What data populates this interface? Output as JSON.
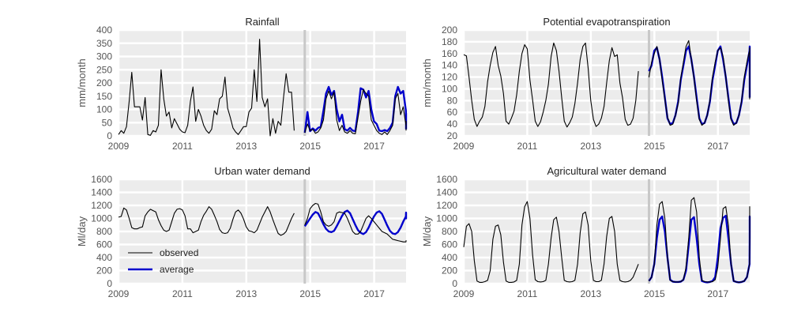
{
  "chart_data": [
    {
      "type": "line",
      "title": "Rainfall",
      "ylabel": "mm/month",
      "xlim": [
        2009,
        2018
      ],
      "ylim": [
        0,
        400
      ],
      "xticks": [
        2009,
        2011,
        2013,
        2015,
        2017
      ],
      "yticks": [
        0,
        50,
        100,
        150,
        200,
        250,
        300,
        350,
        400
      ],
      "divider_x": 2014.83,
      "grid": true,
      "series": [
        {
          "name": "observed",
          "color": "#000000",
          "x_start": 2009.0,
          "x_step": 0.0833,
          "values": [
            5,
            20,
            10,
            35,
            130,
            240,
            110,
            110,
            110,
            60,
            145,
            5,
            2,
            20,
            15,
            40,
            250,
            140,
            75,
            90,
            30,
            65,
            45,
            25,
            15,
            12,
            40,
            130,
            185,
            55,
            100,
            75,
            40,
            20,
            10,
            25,
            95,
            80,
            140,
            150,
            222,
            105,
            70,
            30,
            15,
            5,
            20,
            35,
            35,
            90,
            105,
            250,
            130,
            365,
            145,
            110,
            140,
            0,
            65,
            10,
            55,
            40,
            145,
            235,
            165,
            165,
            20
          ]
        },
        {
          "name": "average",
          "color": "#0000cc",
          "x_start": 2014.83,
          "x_step": 0.0833,
          "values": [
            12,
            90,
            18,
            28,
            20,
            30,
            35,
            95,
            160,
            185,
            155,
            170,
            100,
            55,
            80,
            25,
            20,
            30,
            20,
            18,
            90,
            180,
            175,
            145,
            170,
            100,
            55,
            45,
            20,
            18,
            22,
            18,
            30,
            50,
            150,
            185,
            160,
            170,
            95,
            55,
            45,
            85,
            25
          ]
        },
        {
          "name": "observed",
          "color": "#000000",
          "x_start": 2014.83,
          "x_step": 0.0833,
          "values": [
            12,
            45,
            20,
            25,
            10,
            15,
            30,
            60,
            140,
            170,
            140,
            165,
            60,
            20,
            40,
            15,
            10,
            20,
            10,
            8,
            70,
            130,
            175,
            160,
            150,
            60,
            40,
            20,
            10,
            5,
            15,
            5,
            20,
            40,
            140,
            160,
            80,
            110,
            40,
            45,
            35,
            55,
            20
          ]
        }
      ]
    },
    {
      "type": "line",
      "title": "Potential evapotranspiration",
      "ylabel": "mm/month",
      "xlim": [
        2009,
        2018
      ],
      "ylim": [
        20,
        200
      ],
      "xticks": [
        2009,
        2011,
        2013,
        2015,
        2017
      ],
      "yticks": [
        20,
        40,
        60,
        80,
        100,
        120,
        140,
        160,
        180,
        200
      ],
      "divider_x": 2014.83,
      "grid": true,
      "series": [
        {
          "name": "observed",
          "color": "#000000",
          "x_start": 2009.0,
          "x_step": 0.0833,
          "values": [
            158,
            156,
            120,
            80,
            48,
            36,
            45,
            52,
            70,
            112,
            140,
            162,
            172,
            140,
            122,
            92,
            45,
            40,
            50,
            62,
            90,
            130,
            160,
            175,
            168,
            115,
            82,
            45,
            36,
            44,
            60,
            80,
            108,
            155,
            178,
            165,
            130,
            85,
            45,
            35,
            42,
            52,
            75,
            110,
            150,
            172,
            178,
            135,
            80,
            48,
            36,
            40,
            50,
            70,
            110,
            148,
            170,
            155,
            158,
            110,
            85,
            48,
            38,
            40,
            50,
            80,
            130
          ]
        },
        {
          "name": "average",
          "color": "#0000cc",
          "x_start": 2014.83,
          "x_step": 0.0833,
          "values": [
            130,
            140,
            165,
            170,
            150,
            120,
            85,
            50,
            40,
            42,
            55,
            78,
            115,
            140,
            165,
            172,
            150,
            120,
            85,
            50,
            40,
            42,
            55,
            78,
            115,
            140,
            165,
            172,
            150,
            120,
            85,
            50,
            40,
            42,
            55,
            78,
            115,
            140,
            165,
            172,
            150,
            120,
            85
          ]
        },
        {
          "name": "observed",
          "color": "#000000",
          "x_start": 2014.83,
          "x_step": 0.0833,
          "values": [
            120,
            145,
            160,
            172,
            150,
            115,
            82,
            52,
            38,
            40,
            55,
            75,
            118,
            145,
            172,
            182,
            150,
            118,
            80,
            48,
            38,
            42,
            55,
            80,
            120,
            145,
            165,
            170,
            155,
            120,
            80,
            48,
            38,
            42,
            55,
            80,
            120,
            145,
            165,
            170,
            150,
            118,
            82
          ]
        }
      ]
    },
    {
      "type": "line",
      "title": "Urban water demand",
      "ylabel": "Ml/day",
      "xlim": [
        2009,
        2018
      ],
      "ylim": [
        0,
        1600
      ],
      "xticks": [
        2009,
        2011,
        2013,
        2015,
        2017
      ],
      "yticks": [
        0,
        200,
        400,
        600,
        800,
        1000,
        1200,
        1400,
        1600
      ],
      "divider_x": 2014.83,
      "grid": true,
      "legend": "bottom-left",
      "series": [
        {
          "name": "observed",
          "color": "#000000",
          "x_start": 2009.0,
          "x_step": 0.0833,
          "values": [
            1020,
            1030,
            1160,
            1130,
            1000,
            860,
            840,
            840,
            860,
            870,
            1040,
            1100,
            1140,
            1120,
            1100,
            980,
            890,
            820,
            800,
            820,
            950,
            1080,
            1140,
            1150,
            1130,
            1040,
            840,
            840,
            780,
            800,
            820,
            950,
            1050,
            1110,
            1180,
            1140,
            1050,
            950,
            830,
            780,
            770,
            780,
            850,
            990,
            1100,
            1130,
            1080,
            990,
            870,
            810,
            800,
            780,
            820,
            920,
            1020,
            1100,
            1180,
            1100,
            980,
            870,
            770,
            740,
            760,
            800,
            900,
            1000,
            1080
          ]
        },
        {
          "name": "average",
          "color": "#0000cc",
          "x_start": 2014.83,
          "x_step": 0.0833,
          "values": [
            880,
            940,
            1000,
            1060,
            1100,
            1080,
            1000,
            910,
            840,
            800,
            790,
            810,
            880,
            960,
            1040,
            1100,
            1120,
            1080,
            990,
            900,
            820,
            780,
            760,
            790,
            860,
            950,
            1030,
            1090,
            1110,
            1070,
            980,
            890,
            810,
            770,
            760,
            790,
            860,
            950,
            1030,
            1090,
            1040,
            1000,
            1040
          ]
        },
        {
          "name": "observed",
          "color": "#000000",
          "x_start": 2014.83,
          "x_step": 0.0833,
          "values": [
            900,
            1000,
            1150,
            1200,
            1230,
            1220,
            1100,
            950,
            900,
            880,
            900,
            950,
            1080,
            1100,
            1090,
            1080,
            1000,
            900,
            800,
            760,
            760,
            800,
            900,
            1000,
            1040,
            1000,
            950,
            900,
            850,
            800,
            780,
            760,
            720,
            680,
            670,
            660,
            650,
            640,
            640,
            650,
            660,
            650,
            660
          ]
        }
      ]
    },
    {
      "type": "line",
      "title": "Agricultural water demand",
      "ylabel": "Ml/day",
      "xlim": [
        2009,
        2018
      ],
      "ylim": [
        0,
        1600
      ],
      "xticks": [
        2009,
        2011,
        2013,
        2015,
        2017
      ],
      "yticks": [
        0,
        200,
        400,
        600,
        800,
        1000,
        1200,
        1400,
        1600
      ],
      "divider_x": 2014.83,
      "grid": true,
      "series": [
        {
          "name": "observed",
          "color": "#000000",
          "x_start": 2009.0,
          "x_step": 0.0833,
          "values": [
            560,
            880,
            920,
            800,
            350,
            40,
            20,
            20,
            30,
            50,
            200,
            680,
            880,
            900,
            750,
            330,
            40,
            20,
            20,
            25,
            50,
            300,
            900,
            1180,
            1260,
            1000,
            450,
            60,
            30,
            25,
            30,
            50,
            300,
            700,
            980,
            1020,
            800,
            400,
            50,
            30,
            25,
            30,
            50,
            300,
            780,
            1070,
            1100,
            900,
            350,
            50,
            30,
            30,
            50,
            300,
            720,
            1000,
            1030,
            800,
            300,
            50,
            30,
            25,
            30,
            50,
            100,
            200,
            300
          ]
        },
        {
          "name": "average",
          "color": "#0000cc",
          "x_start": 2014.83,
          "x_step": 0.0833,
          "values": [
            40,
            100,
            300,
            700,
            980,
            1030,
            800,
            400,
            60,
            30,
            25,
            25,
            30,
            60,
            200,
            600,
            980,
            1020,
            700,
            300,
            40,
            25,
            20,
            25,
            40,
            100,
            400,
            850,
            1010,
            1040,
            700,
            300,
            40,
            25,
            20,
            25,
            40,
            100,
            300,
            700,
            980,
            1030,
            800
          ]
        },
        {
          "name": "observed",
          "color": "#000000",
          "x_start": 2014.83,
          "x_step": 0.0833,
          "values": [
            40,
            100,
            300,
            900,
            1220,
            1260,
            1000,
            400,
            50,
            30,
            25,
            25,
            30,
            60,
            250,
            700,
            1280,
            1320,
            1100,
            400,
            50,
            30,
            25,
            25,
            30,
            60,
            250,
            700,
            1150,
            1180,
            900,
            300,
            40,
            25,
            20,
            25,
            40,
            100,
            300,
            700,
            1150,
            1180,
            850
          ]
        }
      ]
    }
  ],
  "legend": {
    "items": [
      {
        "label": "observed",
        "color": "#000000"
      },
      {
        "label": "average",
        "color": "#0000cc"
      }
    ]
  }
}
